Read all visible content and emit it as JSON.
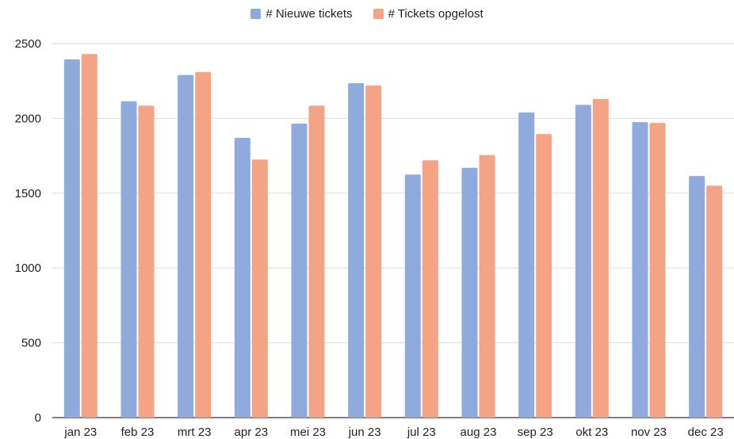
{
  "chart_data": {
    "type": "bar",
    "title": "",
    "xlabel": "",
    "ylabel": "",
    "ylim": [
      0,
      2500
    ],
    "yticks": [
      0,
      500,
      1000,
      1500,
      2000,
      2500
    ],
    "grid": true,
    "legend_position": "top",
    "categories": [
      "jan 23",
      "feb 23",
      "mrt 23",
      "apr 23",
      "mei 23",
      "jun 23",
      "jul 23",
      "aug 23",
      "sep 23",
      "okt 23",
      "nov 23",
      "dec 23"
    ],
    "series": [
      {
        "name": "# Nieuwe tickets",
        "color": "#8faadc",
        "values": [
          2395,
          2115,
          2290,
          1870,
          1965,
          2235,
          1625,
          1670,
          2040,
          2090,
          1975,
          1615
        ]
      },
      {
        "name": "# Tickets opgelost",
        "color": "#f4a484",
        "values": [
          2430,
          2085,
          2310,
          1725,
          2085,
          2220,
          1720,
          1755,
          1895,
          2130,
          1970,
          1550
        ]
      }
    ]
  }
}
